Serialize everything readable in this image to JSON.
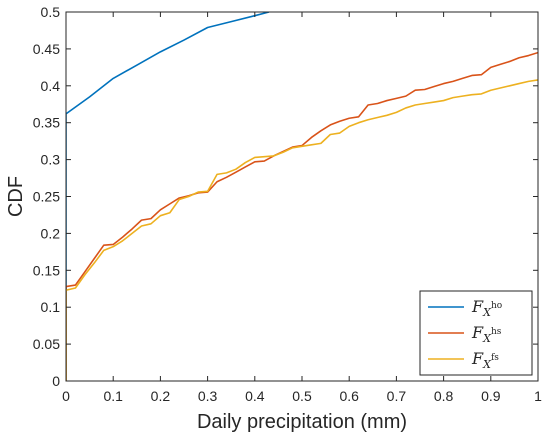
{
  "chart_data": {
    "type": "line",
    "xlabel": "Daily precipitation (mm)",
    "ylabel": "CDF",
    "xlim": [
      0,
      1
    ],
    "ylim": [
      0,
      0.5
    ],
    "xticks": [
      "0",
      "0.1",
      "0.2",
      "0.3",
      "0.4",
      "0.5",
      "0.6",
      "0.7",
      "0.8",
      "0.9",
      "1"
    ],
    "yticks": [
      "0",
      "0.05",
      "0.1",
      "0.15",
      "0.2",
      "0.25",
      "0.3",
      "0.35",
      "0.4",
      "0.45",
      "0.5"
    ],
    "grid": false,
    "legend_position": "bottom-right",
    "series": [
      {
        "name": "F_X^ho",
        "legend_main": "F",
        "legend_sub": "X",
        "legend_sup": "ho",
        "color": "#0072BD",
        "x": [
          0,
          0,
          0.05,
          0.1,
          0.15,
          0.2,
          0.25,
          0.3,
          0.35,
          0.4,
          0.43
        ],
        "y": [
          0,
          0.362,
          0.385,
          0.41,
          0.428,
          0.446,
          0.462,
          0.479,
          0.487,
          0.495,
          0.5
        ]
      },
      {
        "name": "F_X^hs",
        "legend_main": "F",
        "legend_sub": "X",
        "legend_sup": "hs",
        "color": "#D95319",
        "x": [
          0,
          0,
          0.02,
          0.04,
          0.06,
          0.08,
          0.1,
          0.12,
          0.14,
          0.16,
          0.18,
          0.2,
          0.22,
          0.24,
          0.26,
          0.28,
          0.3,
          0.32,
          0.34,
          0.36,
          0.38,
          0.4,
          0.42,
          0.44,
          0.46,
          0.48,
          0.5,
          0.52,
          0.54,
          0.56,
          0.58,
          0.6,
          0.62,
          0.64,
          0.66,
          0.68,
          0.7,
          0.72,
          0.74,
          0.76,
          0.78,
          0.8,
          0.82,
          0.84,
          0.86,
          0.88,
          0.9,
          0.92,
          0.94,
          0.96,
          0.98,
          1.0
        ],
        "y": [
          0,
          0.128,
          0.13,
          0.148,
          0.166,
          0.184,
          0.185,
          0.195,
          0.206,
          0.218,
          0.22,
          0.232,
          0.24,
          0.248,
          0.251,
          0.255,
          0.256,
          0.27,
          0.276,
          0.283,
          0.29,
          0.297,
          0.298,
          0.305,
          0.311,
          0.317,
          0.319,
          0.33,
          0.339,
          0.347,
          0.352,
          0.356,
          0.358,
          0.374,
          0.376,
          0.38,
          0.383,
          0.386,
          0.394,
          0.395,
          0.399,
          0.403,
          0.406,
          0.41,
          0.414,
          0.415,
          0.425,
          0.429,
          0.433,
          0.438,
          0.441,
          0.445
        ]
      },
      {
        "name": "F_X^fs",
        "legend_main": "F",
        "legend_sub": "X",
        "legend_sup": "fs",
        "color": "#EDB120",
        "x": [
          0,
          0,
          0.02,
          0.04,
          0.06,
          0.08,
          0.1,
          0.12,
          0.14,
          0.16,
          0.18,
          0.2,
          0.22,
          0.24,
          0.26,
          0.28,
          0.3,
          0.32,
          0.34,
          0.36,
          0.38,
          0.4,
          0.42,
          0.44,
          0.46,
          0.48,
          0.5,
          0.52,
          0.54,
          0.56,
          0.58,
          0.6,
          0.62,
          0.64,
          0.66,
          0.68,
          0.7,
          0.72,
          0.74,
          0.76,
          0.78,
          0.8,
          0.82,
          0.84,
          0.86,
          0.88,
          0.9,
          0.92,
          0.94,
          0.96,
          0.98,
          1.0
        ],
        "y": [
          0,
          0.123,
          0.126,
          0.144,
          0.16,
          0.177,
          0.182,
          0.19,
          0.2,
          0.21,
          0.213,
          0.224,
          0.228,
          0.246,
          0.25,
          0.256,
          0.257,
          0.28,
          0.282,
          0.287,
          0.296,
          0.303,
          0.304,
          0.305,
          0.31,
          0.316,
          0.318,
          0.32,
          0.322,
          0.334,
          0.336,
          0.345,
          0.35,
          0.354,
          0.357,
          0.36,
          0.364,
          0.37,
          0.374,
          0.376,
          0.378,
          0.38,
          0.384,
          0.386,
          0.388,
          0.389,
          0.394,
          0.397,
          0.4,
          0.403,
          0.406,
          0.408
        ]
      }
    ]
  }
}
